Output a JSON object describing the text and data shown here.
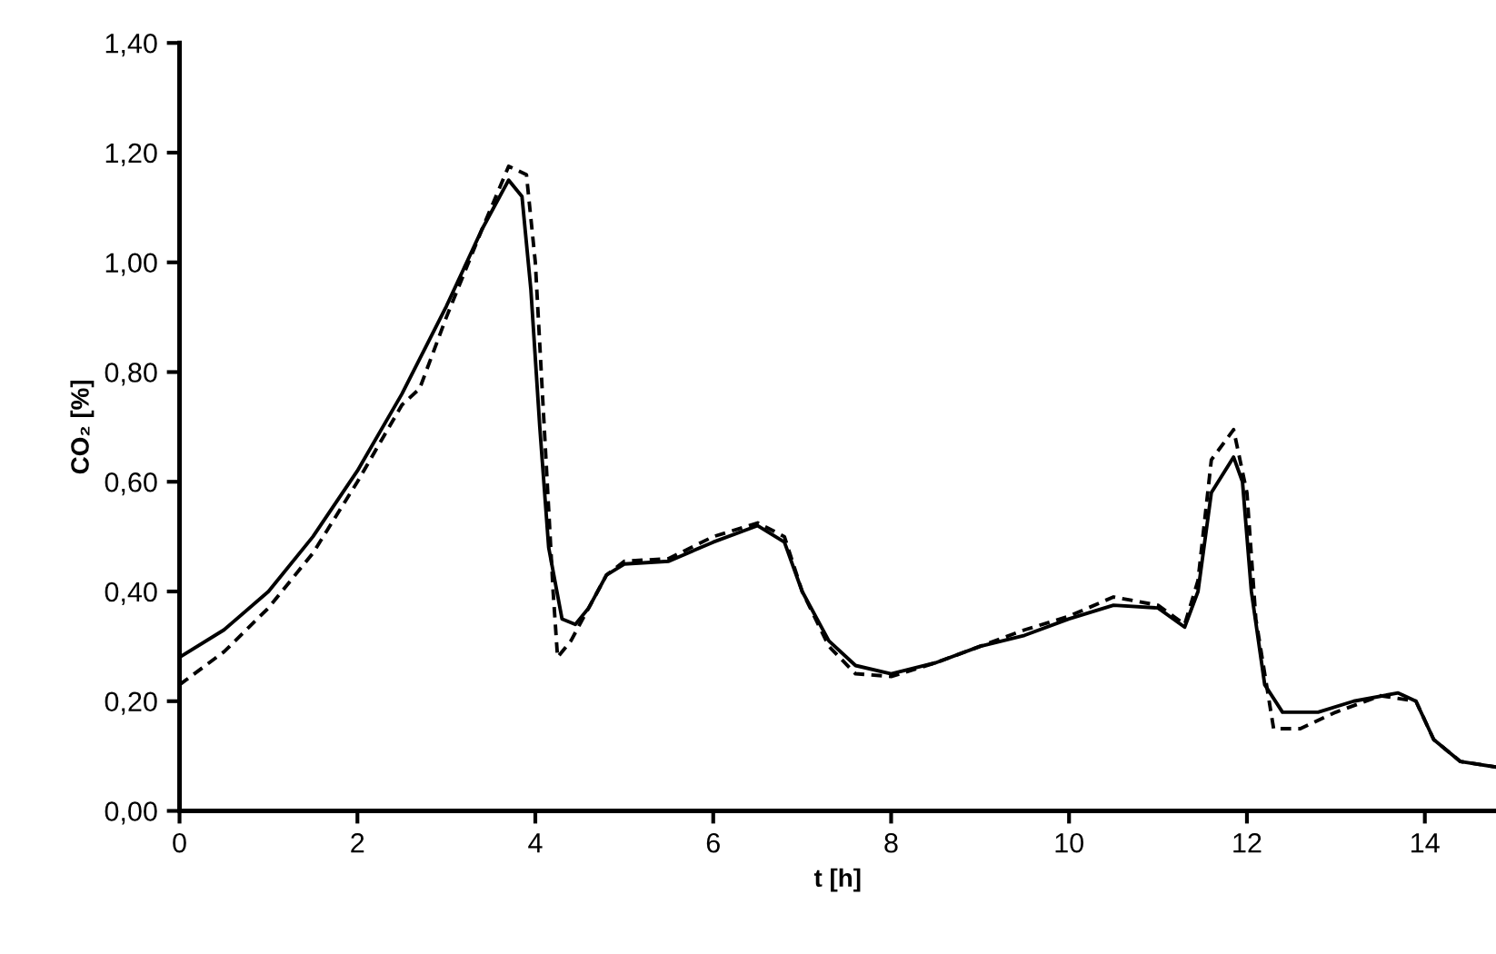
{
  "chart_data": {
    "type": "line",
    "xlabel": "t [h]",
    "ylabel": "CO₂ [%]",
    "xlim": [
      0,
      14.8
    ],
    "xticks": [
      0,
      2,
      4,
      6,
      8,
      10,
      12,
      14
    ],
    "ylim": [
      0,
      1.4
    ],
    "yticks": [
      {
        "value": 0,
        "label": "0,00"
      },
      {
        "value": 0.2,
        "label": "0,20"
      },
      {
        "value": 0.4,
        "label": "0,40"
      },
      {
        "value": 0.6,
        "label": "0,60"
      },
      {
        "value": 0.8,
        "label": "0,80"
      },
      {
        "value": 1.0,
        "label": "1,00"
      },
      {
        "value": 1.2,
        "label": "1,20"
      },
      {
        "value": 1.4,
        "label": "1,40"
      }
    ],
    "grid": false,
    "marker": "none",
    "series": [
      {
        "color": "#000000",
        "line_style": "solid",
        "x": [
          0,
          0.5,
          1,
          1.5,
          2,
          2.5,
          3,
          3.4,
          3.7,
          3.85,
          3.95,
          4.05,
          4.15,
          4.3,
          4.45,
          4.6,
          4.8,
          5.0,
          5.5,
          6.0,
          6.5,
          6.8,
          7.0,
          7.3,
          7.6,
          8.0,
          8.5,
          9.0,
          9.5,
          10.0,
          10.5,
          11.0,
          11.3,
          11.45,
          11.6,
          11.85,
          11.95,
          12.05,
          12.2,
          12.4,
          12.8,
          13.2,
          13.7,
          13.9,
          14.1,
          14.4,
          14.8
        ],
        "values": [
          0.28,
          0.33,
          0.4,
          0.5,
          0.62,
          0.76,
          0.92,
          1.06,
          1.15,
          1.12,
          0.95,
          0.7,
          0.48,
          0.35,
          0.34,
          0.37,
          0.43,
          0.45,
          0.455,
          0.49,
          0.52,
          0.49,
          0.4,
          0.31,
          0.265,
          0.25,
          0.27,
          0.3,
          0.32,
          0.35,
          0.375,
          0.37,
          0.335,
          0.4,
          0.58,
          0.645,
          0.6,
          0.4,
          0.23,
          0.18,
          0.18,
          0.2,
          0.215,
          0.2,
          0.13,
          0.09,
          0.08
        ]
      },
      {
        "color": "#000000",
        "line_style": "dashed",
        "x": [
          0,
          0.5,
          1,
          1.5,
          2,
          2.5,
          2.7,
          3,
          3.4,
          3.7,
          3.9,
          4.0,
          4.1,
          4.2,
          4.25,
          4.4,
          4.6,
          4.8,
          5.0,
          5.5,
          6.0,
          6.5,
          6.8,
          7.0,
          7.3,
          7.6,
          8.0,
          8.5,
          9.0,
          9.5,
          10.0,
          10.5,
          11.0,
          11.3,
          11.45,
          11.6,
          11.85,
          12.0,
          12.1,
          12.3,
          12.6,
          13.0,
          13.5,
          13.9,
          14.1,
          14.4,
          14.8
        ],
        "values": [
          0.23,
          0.29,
          0.37,
          0.47,
          0.6,
          0.74,
          0.77,
          0.9,
          1.06,
          1.175,
          1.16,
          1.0,
          0.7,
          0.4,
          0.28,
          0.31,
          0.37,
          0.43,
          0.455,
          0.46,
          0.5,
          0.525,
          0.5,
          0.4,
          0.3,
          0.25,
          0.245,
          0.27,
          0.3,
          0.33,
          0.355,
          0.39,
          0.375,
          0.34,
          0.42,
          0.64,
          0.695,
          0.58,
          0.35,
          0.15,
          0.15,
          0.18,
          0.21,
          0.2,
          0.13,
          0.09,
          0.08
        ]
      }
    ]
  }
}
